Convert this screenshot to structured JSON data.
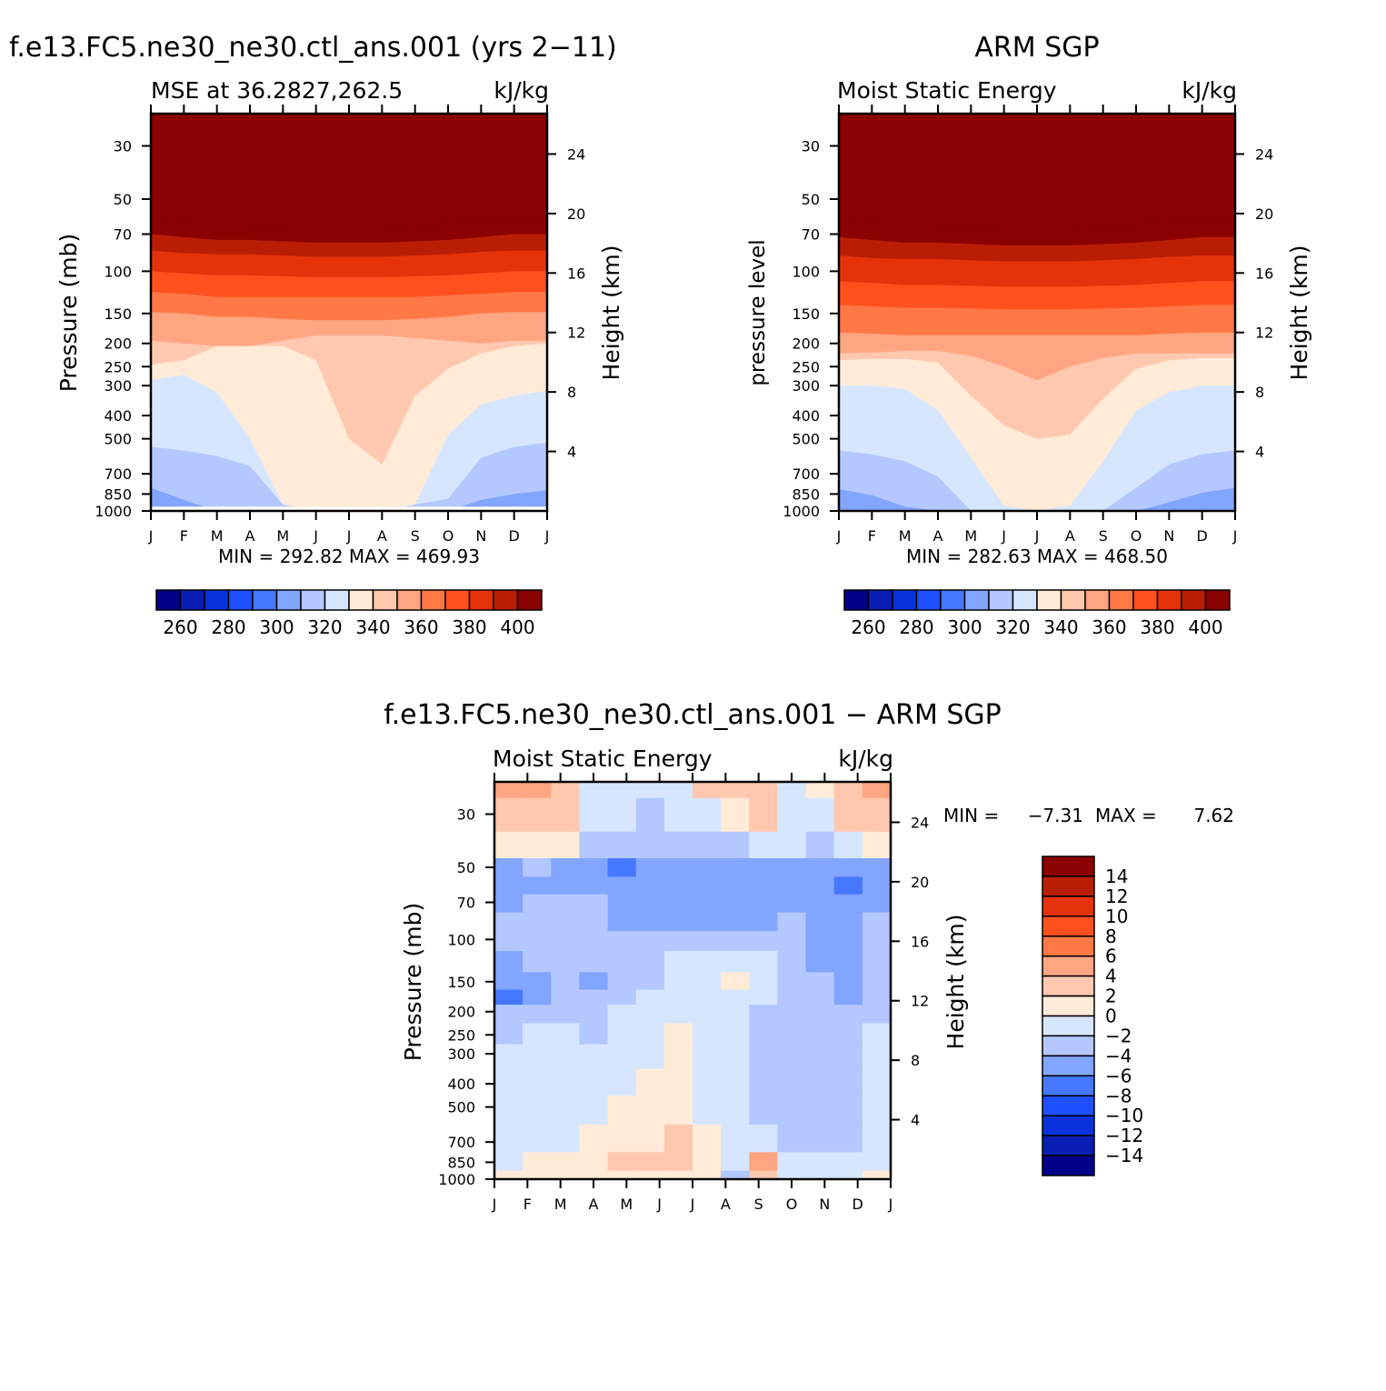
{
  "chart_data": [
    {
      "type": "heatmap",
      "title": "f.e13.FC5.ne30_ne30.ctl_ans.001 (yrs 2−11)",
      "left_label": "MSE at 36.2827,262.5",
      "right_label": "kJ/kg",
      "ylabel": "Pressure (mb)",
      "y2label": "Height (km)",
      "x_ticks": [
        "J",
        "F",
        "M",
        "A",
        "M",
        "J",
        "J",
        "A",
        "S",
        "O",
        "N",
        "D",
        "J"
      ],
      "y_ticks": [
        30,
        50,
        70,
        100,
        150,
        200,
        250,
        300,
        400,
        500,
        700,
        850,
        1000
      ],
      "y2_ticks": [
        4,
        8,
        12,
        16,
        20,
        24
      ],
      "ylim": [
        1000,
        22
      ],
      "stats": "MIN = 292.82 MAX = 469.93",
      "colorbar": {
        "labels": [
          260,
          280,
          300,
          320,
          340,
          360,
          380,
          400
        ],
        "min": 250,
        "max": 410,
        "step": 10
      },
      "levels": [
        {
          "value": 470,
          "p": [
            60,
            62,
            64,
            64,
            65,
            66,
            66,
            66,
            65,
            63,
            62,
            60,
            60
          ]
        },
        {
          "value": 405,
          "p": [
            70,
            72,
            74,
            74,
            75,
            76,
            76,
            76,
            75,
            74,
            72,
            70,
            70
          ]
        },
        {
          "value": 395,
          "p": [
            82,
            84,
            85,
            85,
            86,
            87,
            87,
            87,
            86,
            85,
            83,
            82,
            82
          ]
        },
        {
          "value": 385,
          "p": [
            100,
            102,
            104,
            104,
            105,
            106,
            106,
            106,
            105,
            104,
            102,
            100,
            100
          ]
        },
        {
          "value": 375,
          "p": [
            122,
            124,
            128,
            128,
            128,
            128,
            128,
            128,
            128,
            126,
            124,
            122,
            122
          ]
        },
        {
          "value": 365,
          "p": [
            148,
            150,
            155,
            155,
            158,
            160,
            160,
            160,
            158,
            155,
            150,
            148,
            148
          ]
        },
        {
          "value": 355,
          "p": [
            195,
            200,
            205,
            205,
            195,
            185,
            185,
            185,
            190,
            195,
            200,
            195,
            195
          ]
        },
        {
          "value": 345,
          "p": [
            245,
            235,
            205,
            205,
            205,
            235,
            500,
            640,
            330,
            255,
            220,
            205,
            200
          ]
        },
        {
          "value": 335,
          "p": [
            285,
            270,
            320,
            500,
            940,
            1000,
            1000,
            1000,
            940,
            480,
            360,
            330,
            315
          ]
        },
        {
          "value": 325,
          "p": [
            540,
            560,
            590,
            650,
            940,
            1000,
            1000,
            1000,
            940,
            890,
            600,
            540,
            520
          ]
        },
        {
          "value": 315,
          "p": [
            800,
            900,
            1000,
            1000,
            1000,
            1000,
            1000,
            1000,
            1000,
            1000,
            900,
            850,
            820
          ]
        },
        {
          "value": 305,
          "p": [
            1000,
            1000,
            1000,
            1000,
            1000,
            1000,
            1000,
            1000,
            1000,
            1000,
            1000,
            950,
            930
          ]
        }
      ]
    },
    {
      "type": "heatmap",
      "title": "ARM SGP",
      "left_label": "Moist Static Energy",
      "right_label": "kJ/kg",
      "ylabel": "pressure level",
      "y2label": "Height (km)",
      "x_ticks": [
        "J",
        "F",
        "M",
        "A",
        "M",
        "J",
        "J",
        "A",
        "S",
        "O",
        "N",
        "D",
        "J"
      ],
      "y_ticks": [
        30,
        50,
        70,
        100,
        150,
        200,
        250,
        300,
        400,
        500,
        700,
        850,
        1000
      ],
      "y2_ticks": [
        4,
        8,
        12,
        16,
        20,
        24
      ],
      "ylim": [
        1000,
        22
      ],
      "stats": "MIN = 282.63 MAX = 468.50",
      "colorbar": {
        "labels": [
          260,
          280,
          300,
          320,
          340,
          360,
          380,
          400
        ],
        "min": 250,
        "max": 410,
        "step": 10
      },
      "levels": [
        {
          "value": 470,
          "p": [
            60,
            62,
            64,
            65,
            66,
            67,
            67,
            67,
            66,
            64,
            62,
            60,
            60
          ]
        },
        {
          "value": 405,
          "p": [
            72,
            74,
            76,
            76,
            77,
            78,
            78,
            78,
            77,
            76,
            74,
            72,
            72
          ]
        },
        {
          "value": 395,
          "p": [
            86,
            88,
            89,
            89,
            90,
            91,
            91,
            91,
            90,
            89,
            87,
            86,
            86
          ]
        },
        {
          "value": 385,
          "p": [
            110,
            112,
            114,
            114,
            115,
            116,
            116,
            116,
            115,
            114,
            112,
            110,
            110
          ]
        },
        {
          "value": 375,
          "p": [
            138,
            140,
            142,
            142,
            143,
            144,
            144,
            144,
            143,
            142,
            140,
            138,
            138
          ]
        },
        {
          "value": 365,
          "p": [
            180,
            182,
            185,
            185,
            185,
            185,
            185,
            185,
            185,
            185,
            182,
            180,
            180
          ]
        },
        {
          "value": 355,
          "p": [
            220,
            218,
            215,
            215,
            225,
            250,
            285,
            250,
            230,
            220,
            220,
            220,
            220
          ]
        },
        {
          "value": 345,
          "p": [
            235,
            232,
            232,
            240,
            330,
            440,
            500,
            480,
            340,
            255,
            235,
            230,
            230
          ]
        },
        {
          "value": 335,
          "p": [
            300,
            300,
            310,
            380,
            600,
            950,
            1000,
            950,
            620,
            380,
            320,
            300,
            300
          ]
        },
        {
          "value": 325,
          "p": [
            560,
            580,
            620,
            720,
            1000,
            1000,
            1000,
            1000,
            1000,
            800,
            640,
            580,
            560
          ]
        },
        {
          "value": 315,
          "p": [
            810,
            860,
            960,
            1000,
            1000,
            1000,
            1000,
            1000,
            1000,
            1000,
            920,
            840,
            800
          ]
        },
        {
          "value": 305,
          "p": [
            1000,
            1000,
            1000,
            1000,
            1000,
            1000,
            1000,
            1000,
            1000,
            1000,
            1000,
            940,
            920
          ]
        }
      ]
    },
    {
      "type": "heatmap",
      "title": "f.e13.FC5.ne30_ne30.ctl_ans.001 − ARM SGP",
      "left_label": "Moist Static Energy",
      "right_label": "kJ/kg",
      "ylabel": "Pressure (mb)",
      "y2label": "Height (km)",
      "x_ticks": [
        "J",
        "F",
        "M",
        "A",
        "M",
        "J",
        "J",
        "A",
        "S",
        "O",
        "N",
        "D",
        "J"
      ],
      "y_ticks": [
        30,
        50,
        70,
        100,
        150,
        200,
        250,
        300,
        400,
        500,
        700,
        850,
        1000
      ],
      "y2_ticks": [
        4,
        8,
        12,
        16,
        20,
        24
      ],
      "ylim": [
        1000,
        22
      ],
      "stats_min_label": "MIN =",
      "stats_min": "−7.31",
      "stats_max_label": "MAX =",
      "stats_max": "7.62",
      "colorbar": {
        "labels": [
          "14",
          "12",
          "10",
          "8",
          "6",
          "4",
          "2",
          "0",
          "−2",
          "−4",
          "−6",
          "−8",
          "−10",
          "−12",
          "−14"
        ],
        "min": -16,
        "max": 16,
        "step": 2
      },
      "grid": {
        "p": [
          22,
          30,
          42,
          50,
          60,
          70,
          85,
          100,
          125,
          150,
          175,
          200,
          250,
          300,
          400,
          500,
          700,
          850,
          1000
        ],
        "values": [
          [
            5,
            4,
            3,
            -1,
            -1,
            -2,
            -2,
            2,
            2,
            3,
            -1,
            1,
            3,
            5
          ],
          [
            3,
            3,
            2,
            -2,
            -2,
            -3,
            -2,
            -1,
            1,
            2,
            -2,
            -1,
            2,
            3
          ],
          [
            1,
            1,
            1,
            -3,
            -3,
            -3,
            -3,
            -3,
            -3,
            -2,
            -2,
            -3,
            -1,
            1
          ],
          [
            -5,
            -4,
            -5,
            -5,
            -7,
            -6,
            -5,
            -5,
            -5,
            -5,
            -5,
            -5,
            -6,
            -5
          ],
          [
            -6,
            -5,
            -5,
            -5,
            -6,
            -6,
            -5,
            -5,
            -5,
            -5,
            -5,
            -6,
            -7,
            -5
          ],
          [
            -5,
            -4,
            -4,
            -4,
            -5,
            -5,
            -5,
            -5,
            -5,
            -5,
            -5,
            -5,
            -6,
            -5
          ],
          [
            -4,
            -4,
            -4,
            -4,
            -5,
            -5,
            -5,
            -5,
            -5,
            -5,
            -4,
            -5,
            -5,
            -4
          ],
          [
            -4,
            -4,
            -3,
            -3,
            -4,
            -3,
            -3,
            -3,
            -3,
            -3,
            -4,
            -5,
            -5,
            -4
          ],
          [
            -5,
            -4,
            -3,
            -4,
            -4,
            -3,
            -2,
            -2,
            -2,
            -2,
            -4,
            -5,
            -5,
            -4
          ],
          [
            -6,
            -5,
            -3,
            -5,
            -4,
            -3,
            -2,
            -2,
            1,
            -2,
            -3,
            -4,
            -5,
            -4
          ],
          [
            -7,
            -6,
            -3,
            -4,
            -3,
            -2,
            -2,
            -2,
            -2,
            -2,
            -3,
            -4,
            -5,
            -4
          ],
          [
            -4,
            -4,
            -3,
            -3,
            -2,
            -2,
            -1,
            -2,
            -2,
            -3,
            -3,
            -4,
            -4,
            -3
          ],
          [
            -3,
            -2,
            -2,
            -3,
            -2,
            -2,
            1,
            -1,
            -2,
            -3,
            -3,
            -4,
            -4,
            -2
          ],
          [
            -2,
            -2,
            -1,
            -2,
            -1,
            -1,
            1,
            -1,
            -2,
            -3,
            -3,
            -4,
            -4,
            -2
          ],
          [
            -2,
            -1,
            -1,
            -1,
            -1,
            1,
            1,
            -1,
            -2,
            -3,
            -3,
            -4,
            -4,
            -2
          ],
          [
            -1,
            -1,
            -1,
            -1,
            1,
            1,
            1,
            -1,
            -2,
            -3,
            -3,
            -4,
            -4,
            -2
          ],
          [
            -1,
            -1,
            -1,
            1,
            1,
            1,
            2,
            1,
            -1,
            -1,
            -3,
            -3,
            -3,
            -2
          ],
          [
            -1,
            1,
            1,
            1,
            2,
            2,
            3,
            1,
            -1,
            4,
            -1,
            -2,
            -2,
            -1
          ],
          [
            1,
            1,
            1,
            1,
            1,
            1,
            1,
            1,
            -3,
            2,
            -1,
            -1,
            -1,
            1
          ]
        ]
      }
    }
  ]
}
